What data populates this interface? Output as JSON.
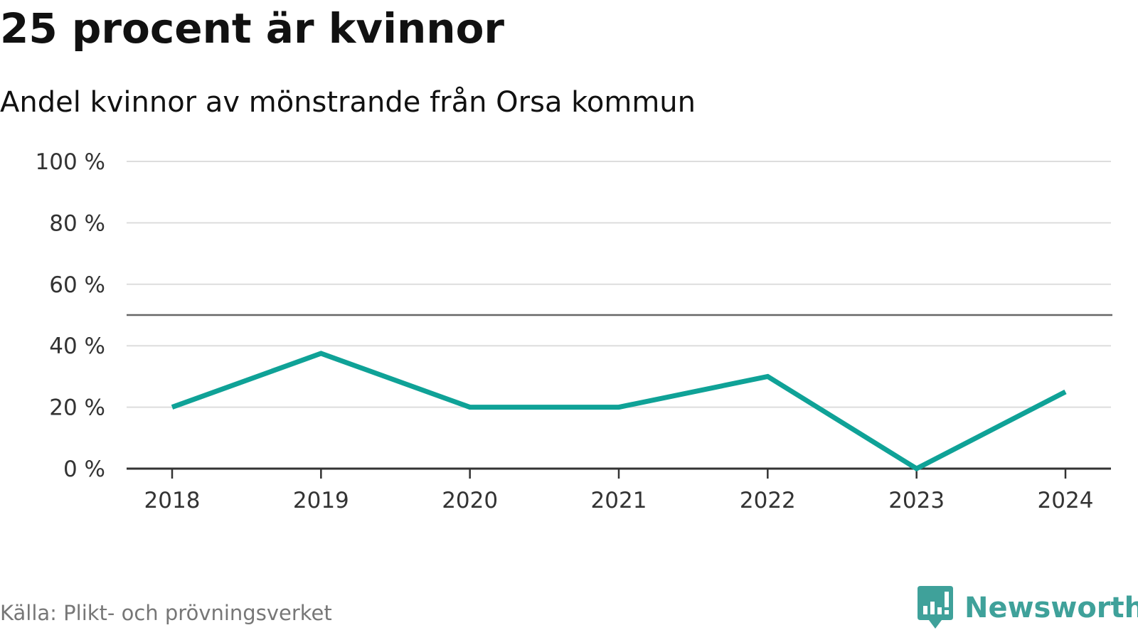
{
  "title": "25 procent är kvinnor",
  "subtitle": "Andel kvinnor av mönstrande från Orsa kommun",
  "source": "Källa: Plikt- och prövningsverket",
  "brand": {
    "name": "Newsworthy",
    "icon": "bar-chart-logo-icon",
    "color": "#3fa19a"
  },
  "chart_data": {
    "type": "line",
    "title": "25 procent är kvinnor",
    "subtitle": "Andel kvinnor av mönstrande från Orsa kommun",
    "x": [
      "2018",
      "2019",
      "2020",
      "2021",
      "2022",
      "2023",
      "2024"
    ],
    "series": [
      {
        "values": [
          20,
          37.5,
          20,
          20,
          30,
          0,
          25
        ],
        "color": "#0fa297"
      }
    ],
    "ylim": [
      0,
      100
    ],
    "yticks": [
      0,
      20,
      40,
      60,
      80,
      100
    ],
    "ytick_labels": [
      "0 %",
      "20 %",
      "40 %",
      "60 %",
      "80 %",
      "100 %"
    ],
    "reference_line": 50,
    "grid": true,
    "xlabel": "",
    "ylabel": ""
  }
}
